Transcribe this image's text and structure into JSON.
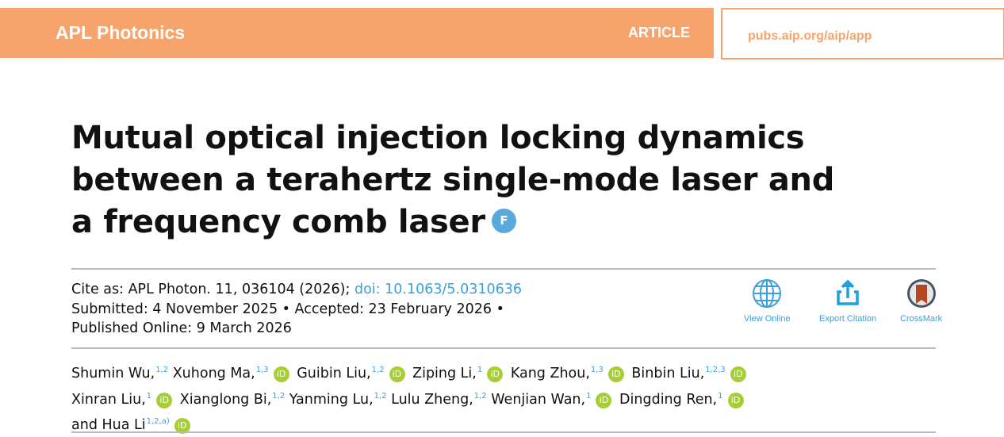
{
  "header": {
    "journal": "APL Photonics",
    "type": "ARTICLE",
    "url": "pubs.aip.org/aip/app"
  },
  "title": "Mutual optical injection locking dynamics between a terahertz single-mode laser and a frequency comb laser",
  "featured_badge": "F",
  "cite": {
    "prefix": "Cite as: APL Photon. 11, 036104 (2026);",
    "doi": "doi: 10.1063/5.0310636",
    "dates_line1": "Submitted: 4 November 2025 • Accepted: 23 February 2026 •",
    "dates_line2": "Published Online: 9 March 2026"
  },
  "tools": {
    "view_online": "View Online",
    "export_citation": "Export Citation",
    "crossmark": "CrossMark"
  },
  "orcid_label": "iD",
  "authors": [
    [
      {
        "name": "Shumin Wu,",
        "aff": "1,2",
        "orcid": false
      },
      {
        "name": "Xuhong Ma,",
        "aff": "1,3",
        "orcid": true
      },
      {
        "name": "Guibin Liu,",
        "aff": "1,2",
        "orcid": true
      },
      {
        "name": "Ziping Li,",
        "aff": "1",
        "orcid": true
      },
      {
        "name": "Kang Zhou,",
        "aff": "1,3",
        "orcid": true
      },
      {
        "name": "Binbin Liu,",
        "aff": "1,2,3",
        "orcid": true
      }
    ],
    [
      {
        "name": "Xinran Liu,",
        "aff": "1",
        "orcid": true
      },
      {
        "name": "Xianglong Bi,",
        "aff": "1,2",
        "orcid": false
      },
      {
        "name": "Yanming Lu,",
        "aff": "1,2",
        "orcid": false
      },
      {
        "name": "Lulu Zheng,",
        "aff": "1,2",
        "orcid": false
      },
      {
        "name": "Wenjian Wan,",
        "aff": "1",
        "orcid": true
      },
      {
        "name": "Dingding Ren,",
        "aff": "1",
        "orcid": true
      }
    ],
    [
      {
        "name": "and Hua Li",
        "aff": "1,2,a)",
        "orcid": true
      }
    ]
  ]
}
